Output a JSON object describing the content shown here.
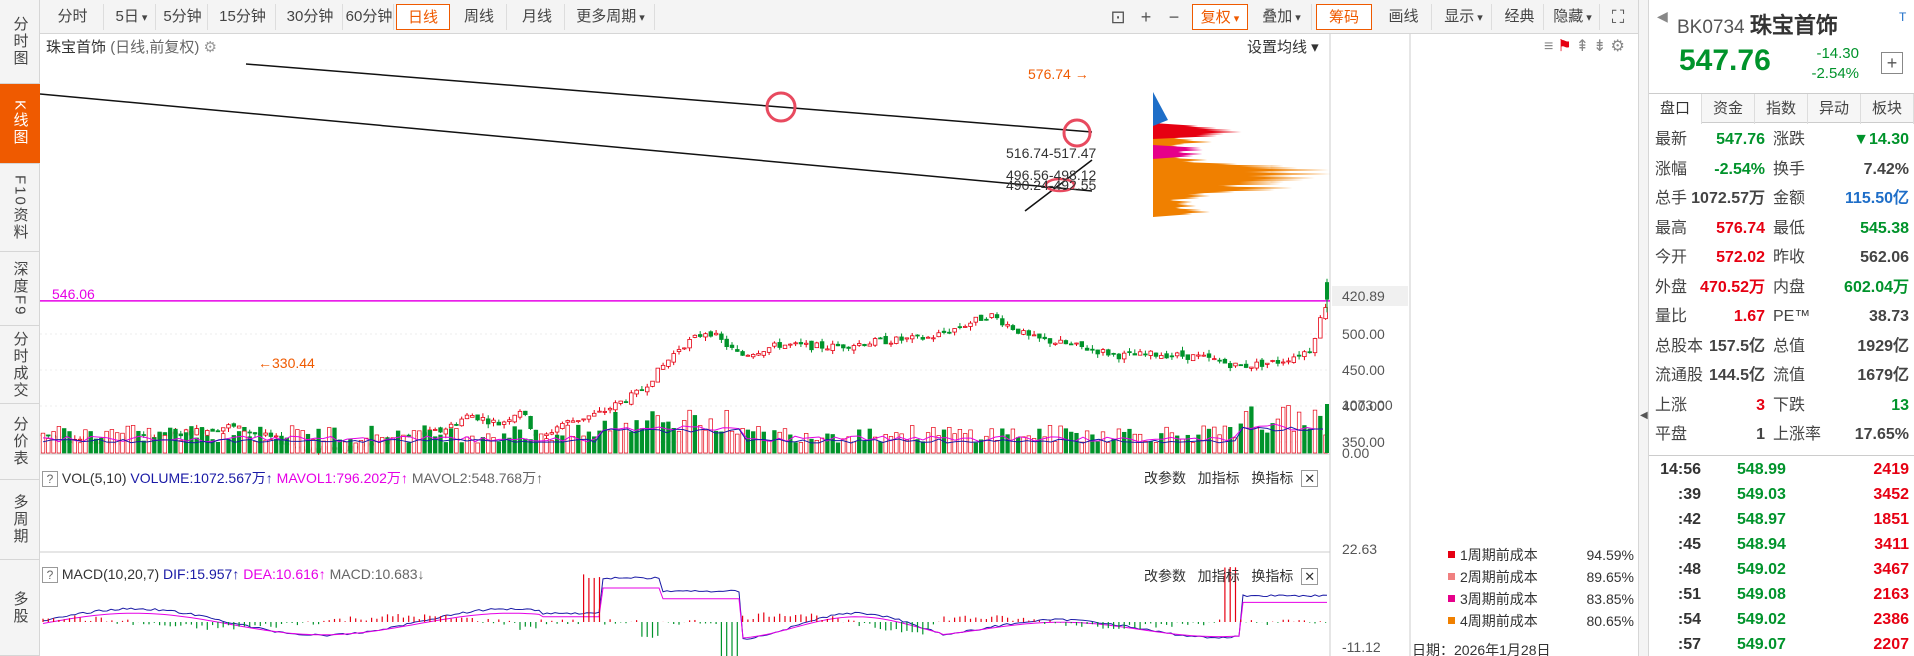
{
  "leftbar": [
    {
      "label": "分时图",
      "active": false
    },
    {
      "label": "K线图",
      "active": true
    },
    {
      "label": "F10资料",
      "active": false
    },
    {
      "label": "深度F9",
      "active": false
    },
    {
      "label": "分时成交",
      "active": false
    },
    {
      "label": "分价表",
      "active": false
    },
    {
      "label": "多周期",
      "active": false
    },
    {
      "label": "多股",
      "active": false
    }
  ],
  "toolbar": {
    "periods": [
      "分时",
      "5日",
      "5分钟",
      "15分钟",
      "30分钟",
      "60分钟",
      "日线",
      "周线",
      "月线",
      "更多周期"
    ],
    "active_period": "日线",
    "right_buttons": [
      "复权",
      "叠加",
      "筹码",
      "画线",
      "显示",
      "经典",
      "隐藏"
    ],
    "active_right": "筹码"
  },
  "chart": {
    "name": "珠宝首饰",
    "mode": "(日线,前复权)",
    "ma_setting": "设置均线",
    "y_labels": [
      "500.00",
      "450.00",
      "400.00",
      "350.00"
    ],
    "price_tag_current": "547.76",
    "price_tag_low": "420.89",
    "label_546": "546.06",
    "label_high": "576.74",
    "label_low": "330.44",
    "label_range1": "516.74-517.47",
    "label_range2": "496.56-498.12",
    "label_range3": "490.24-492.55"
  },
  "volume": {
    "indicator": "VOL(5,10)",
    "volume": "VOLUME:1072.567万",
    "mavol1": "MAVOL1:796.202万",
    "mavol2": "MAVOL2:548.768万",
    "btn_params": "改参数",
    "btn_add": "加指标",
    "btn_switch": "换指标",
    "y_top": "1073.00",
    "y_bottom": "0.00"
  },
  "macd": {
    "indicator": "MACD(10,20,7)",
    "dif": "DIF:15.957",
    "dea": "DEA:10.616",
    "macd": "MACD:10.683",
    "y_top": "22.63",
    "y_bottom": "-11.12"
  },
  "chips_legend": [
    {
      "label": "1周期前成本",
      "value": "94.59%",
      "color": "#e60012"
    },
    {
      "label": "2周期前成本",
      "value": "89.65%",
      "color": "#f08080"
    },
    {
      "label": "3周期前成本",
      "value": "83.85%",
      "color": "#e6008a"
    },
    {
      "label": "4周期前成本",
      "value": "80.65%",
      "color": "#f08000"
    }
  ],
  "chips_date": "日期：2026年1月28日",
  "quote": {
    "code": "BK0734",
    "name": "珠宝首饰",
    "price": "547.76",
    "change": "-14.30",
    "change_pct": "-2.54%",
    "tabs": [
      "盘口",
      "资金",
      "指数",
      "异动",
      "板块"
    ],
    "rows": [
      {
        "k1": "最新",
        "v1": "547.76",
        "c1": "green",
        "k2": "涨跌",
        "v2": "▼14.30",
        "c2": "green"
      },
      {
        "k1": "涨幅",
        "v1": "-2.54%",
        "c1": "green",
        "k2": "换手",
        "v2": "7.42%",
        "c2": "gray"
      },
      {
        "k1": "总手",
        "v1": "1072.57万",
        "c1": "gray",
        "k2": "金额",
        "v2": "115.50亿",
        "c2": "blue"
      },
      {
        "k1": "最高",
        "v1": "576.74",
        "c1": "red",
        "k2": "最低",
        "v2": "545.38",
        "c2": "green"
      },
      {
        "k1": "今开",
        "v1": "572.02",
        "c1": "red",
        "k2": "昨收",
        "v2": "562.06",
        "c2": "gray"
      },
      {
        "k1": "外盘",
        "v1": "470.52万",
        "c1": "red",
        "k2": "内盘",
        "v2": "602.04万",
        "c2": "green"
      },
      {
        "k1": "量比",
        "v1": "1.67",
        "c1": "red",
        "k2": "PE™",
        "v2": "38.73",
        "c2": "gray"
      },
      {
        "k1": "总股本",
        "v1": "157.5亿",
        "c1": "gray",
        "k2": "总值",
        "v2": "1929亿",
        "c2": "gray"
      },
      {
        "k1": "流通股",
        "v1": "144.5亿",
        "c1": "gray",
        "k2": "流值",
        "v2": "1679亿",
        "c2": "gray"
      },
      {
        "k1": "上涨",
        "v1": "3",
        "c1": "red",
        "k2": "下跌",
        "v2": "13",
        "c2": "green"
      },
      {
        "k1": "平盘",
        "v1": "1",
        "c1": "gray",
        "k2": "上涨率",
        "v2": "17.65%",
        "c2": "gray"
      }
    ],
    "ticks": [
      {
        "t": "14:56",
        "p": "548.99",
        "v": "2419"
      },
      {
        "t": ":39",
        "p": "549.03",
        "v": "3452"
      },
      {
        "t": ":42",
        "p": "548.97",
        "v": "1851"
      },
      {
        "t": ":45",
        "p": "548.94",
        "v": "3411"
      },
      {
        "t": ":48",
        "p": "549.02",
        "v": "3467"
      },
      {
        "t": ":51",
        "p": "549.08",
        "v": "2163"
      },
      {
        "t": ":54",
        "p": "549.02",
        "v": "2386"
      },
      {
        "t": ":57",
        "p": "549.07",
        "v": "2207"
      }
    ]
  }
}
